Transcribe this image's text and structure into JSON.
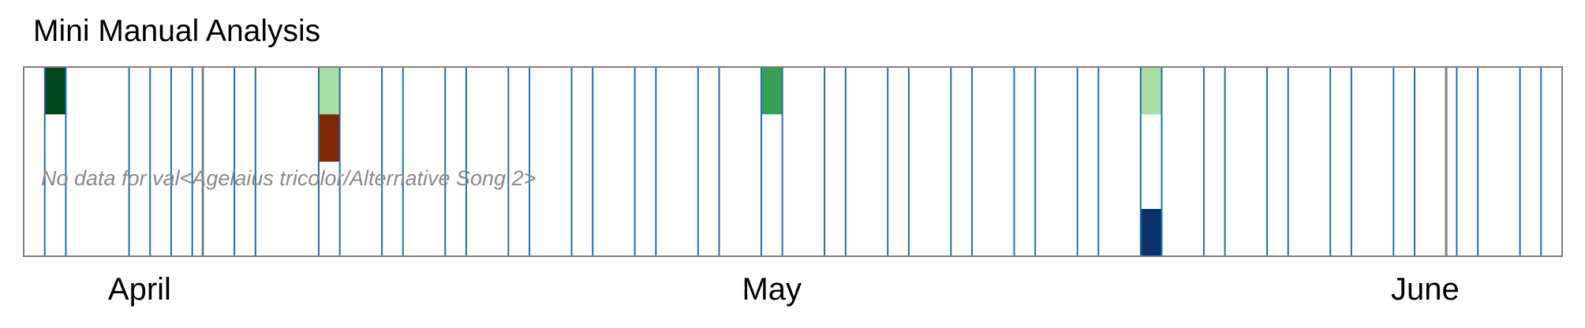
{
  "title": "Mini Manual Analysis",
  "chart_data": {
    "type": "heatmap",
    "title": "Mini Manual Analysis",
    "x_axis": "date",
    "x_range": [
      "2025-03-27",
      "2025-06-08"
    ],
    "month_labels": [
      {
        "text": "April",
        "date": "2025-04-01"
      },
      {
        "text": "May",
        "date": "2025-05-01"
      },
      {
        "text": "June",
        "date": "2025-06-01"
      }
    ],
    "week_separators": [
      "2025-04-04",
      "2025-06-02"
    ],
    "rows": 4,
    "columns_with_data": [
      "2025-03-28",
      "2025-04-01",
      "2025-04-03",
      "2025-04-06",
      "2025-04-10",
      "2025-04-13",
      "2025-04-16",
      "2025-04-19",
      "2025-04-22",
      "2025-04-25",
      "2025-04-28",
      "2025-05-01",
      "2025-05-04",
      "2025-05-07",
      "2025-05-10",
      "2025-05-13",
      "2025-05-16",
      "2025-05-19",
      "2025-05-22",
      "2025-05-25",
      "2025-05-28",
      "2025-05-31",
      "2025-06-03",
      "2025-06-06"
    ],
    "filled_cells": [
      {
        "date": "2025-03-28",
        "row": 0,
        "color": "#00441b"
      },
      {
        "date": "2025-04-10",
        "row": 0,
        "color": "#a8dda4"
      },
      {
        "date": "2025-04-10",
        "row": 1,
        "color": "#7f2704"
      },
      {
        "date": "2025-05-01",
        "row": 0,
        "color": "#37a055"
      },
      {
        "date": "2025-05-19",
        "row": 0,
        "color": "#a8dda4"
      },
      {
        "date": "2025-05-19",
        "row": 3,
        "color": "#08306b"
      }
    ],
    "annotation": "No data for val<Agelaius tricolor/Alternative Song 2>",
    "colors": {
      "border": "#7f7f7f",
      "column_line": "#1f6fb3",
      "annotation": "#8a8a8a"
    }
  }
}
